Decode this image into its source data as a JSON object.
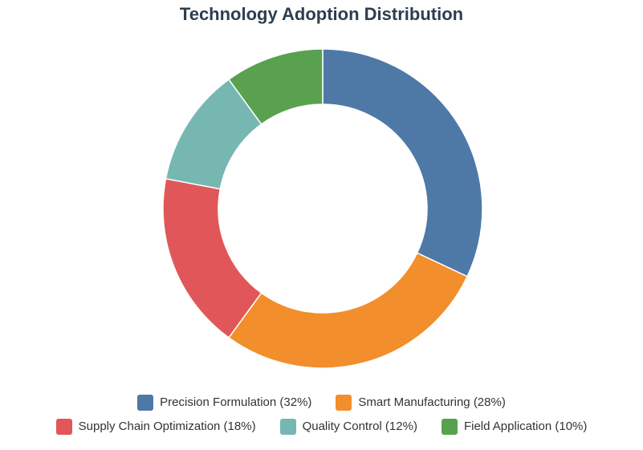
{
  "chart_data": {
    "type": "pie",
    "donut": true,
    "title": "Technology Adoption Distribution",
    "legend_position": "bottom",
    "slices": [
      {
        "label": "Precision Formulation (32%)",
        "value": 32,
        "color": "#4e79a7"
      },
      {
        "label": "Smart Manufacturing (28%)",
        "value": 28,
        "color": "#f28e2b"
      },
      {
        "label": "Supply Chain Optimization (18%)",
        "value": 18,
        "color": "#e15759"
      },
      {
        "label": "Quality Control (12%)",
        "value": 12,
        "color": "#76b7b2"
      },
      {
        "label": "Field Application (10%)",
        "value": 10,
        "color": "#59a14f"
      }
    ]
  }
}
